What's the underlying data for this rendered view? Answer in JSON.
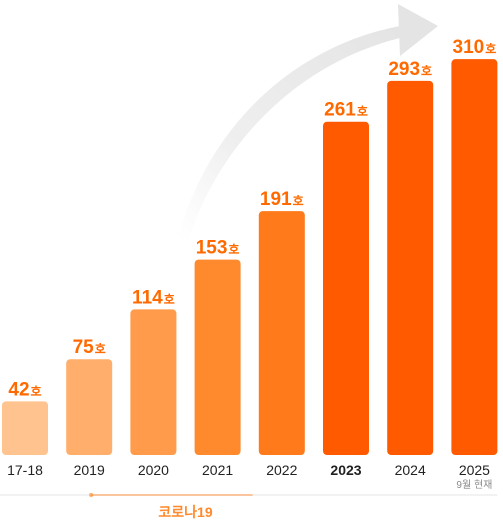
{
  "chart_data": {
    "type": "bar",
    "unit": "호",
    "categories": [
      "17-18",
      "2019",
      "2020",
      "2021",
      "2022",
      "2023",
      "2024",
      "2025"
    ],
    "values": [
      42,
      75,
      114,
      153,
      191,
      261,
      293,
      310
    ],
    "category_notes": {
      "2025": "9월 현재"
    },
    "highlighted_category": "2023",
    "annotation": {
      "label": "코로나19",
      "from_category": "2019",
      "to_category": "2021"
    },
    "title": "",
    "xlabel": "",
    "ylabel": "",
    "ylim": [
      0,
      325
    ],
    "bar_colors": [
      "#FFC38F",
      "#FFAE6C",
      "#FF9B4A",
      "#FF8A2E",
      "#FF7A1A",
      "#FF5A00",
      "#FF5A00",
      "#FF5A00"
    ],
    "accent_color": "#FF6A00",
    "covid_color": "#FF8A2E",
    "grid": false,
    "legend": "none"
  }
}
